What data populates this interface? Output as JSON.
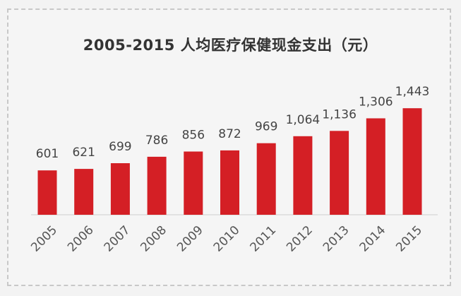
{
  "chart_data": {
    "type": "bar",
    "title": "2005-2015 人均医疗保健现金支出（元）",
    "categories": [
      "2005",
      "2006",
      "2007",
      "2008",
      "2009",
      "2010",
      "2011",
      "2012",
      "2013",
      "2014",
      "2015"
    ],
    "values": [
      601,
      621,
      699,
      786,
      856,
      872,
      969,
      1064,
      1136,
      1306,
      1443
    ],
    "value_labels": [
      "601",
      "621",
      "699",
      "786",
      "856",
      "872",
      "969",
      "1,064",
      "1,136",
      "1,306",
      "1,443"
    ],
    "xlabel": "",
    "ylabel": "",
    "ylim": [
      0,
      1500
    ],
    "grid": false,
    "legend": "none",
    "bar_color": "#d41f25"
  }
}
